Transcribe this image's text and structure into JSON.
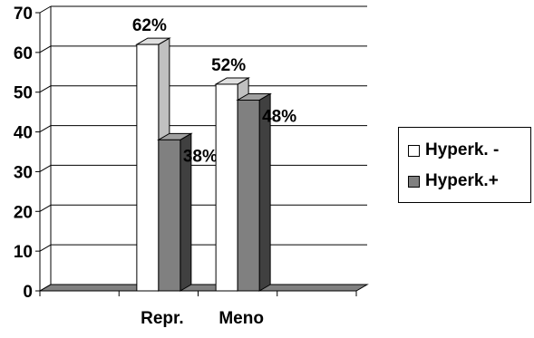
{
  "chart_data": {
    "type": "bar",
    "categories": [
      "Repr.",
      "Meno"
    ],
    "series": [
      {
        "name": "Hyperk. -",
        "values": [
          62,
          52
        ],
        "labels": [
          "62%",
          "52%"
        ],
        "color": "#ffffff"
      },
      {
        "name": "Hyperk.+",
        "values": [
          38,
          48
        ],
        "labels": [
          "38%",
          "48%"
        ],
        "color": "#808080"
      }
    ],
    "ylim": [
      0,
      70
    ],
    "yticks": [
      "0",
      "10",
      "20",
      "30",
      "40",
      "50",
      "60",
      "70"
    ],
    "grid": true,
    "legend_position": "right",
    "style": "3d"
  }
}
